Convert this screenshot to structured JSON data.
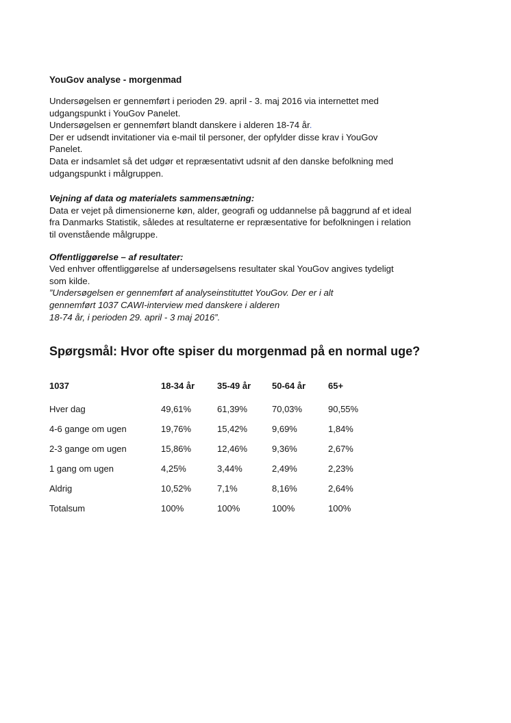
{
  "doc": {
    "title": "YouGov analyse - morgenmad"
  },
  "intro": {
    "lines": [
      "Undersøgelsen er gennemført i perioden 29. april - 3. maj 2016 via internettet med",
      "udgangspunkt i YouGov Panelet.",
      "Undersøgelsen er gennemført blandt danskere i alderen 18-74 år",
      "Der er udsendt invitationer via e-mail til personer, der opfylder disse krav i YouGov",
      "Panelet.",
      "Data er indsamlet så det udgør et repræsentativt udsnit af den danske befolkning med",
      "udgangspunkt i målgruppen."
    ],
    "line3_period": "."
  },
  "weighting": {
    "heading": "Vejning af data og materialets sammensætning:",
    "lines": [
      "Data er vejet på dimensionerne køn, alder, geografi og uddannelse på baggrund af et ideal",
      "fra Danmarks Statistik, således at resultaterne er repræsentative for befolkningen i relation",
      "til ovenstående målgruppe."
    ]
  },
  "publication": {
    "heading": "Offentliggørelse – af resultater:",
    "lines": [
      "Ved enhver offentliggørelse af undersøgelsens resultater skal YouGov angives tydeligt",
      "som kilde."
    ],
    "quote_lines": [
      "”Undersøgelsen er gennemført af analyseinstituttet YouGov. Der er i alt",
      "gennemført 1037 CAWI-interview med danskere i alderen",
      "18-74 år, i perioden 29. april - 3 maj 2016”."
    ]
  },
  "question": {
    "heading": "Spørgsmål: Hvor ofte spiser du morgenmad på en normal uge?"
  },
  "table": {
    "header": [
      "1037",
      "18-34 år",
      "35-49 år",
      "50-64 år",
      "65+"
    ],
    "rows": [
      [
        "Hver dag",
        "49,61%",
        "61,39%",
        "70,03%",
        "90,55%"
      ],
      [
        "4-6 gange om ugen",
        "19,76%",
        "15,42%",
        "9,69%",
        "1,84%"
      ],
      [
        "2-3 gange om ugen",
        "15,86%",
        "12,46%",
        "9,36%",
        "2,67%"
      ],
      [
        "1 gang om ugen",
        "4,25%",
        "3,44%",
        "2,49%",
        "2,23%"
      ],
      [
        "Aldrig",
        "10,52%",
        "7,1%",
        "8,16%",
        "2,64%"
      ],
      [
        "Totalsum",
        "100%",
        "100%",
        "100%",
        "100%"
      ]
    ]
  },
  "colors": {
    "text": "#161616",
    "link_blue": "#3b5cc9",
    "background": "#ffffff"
  }
}
